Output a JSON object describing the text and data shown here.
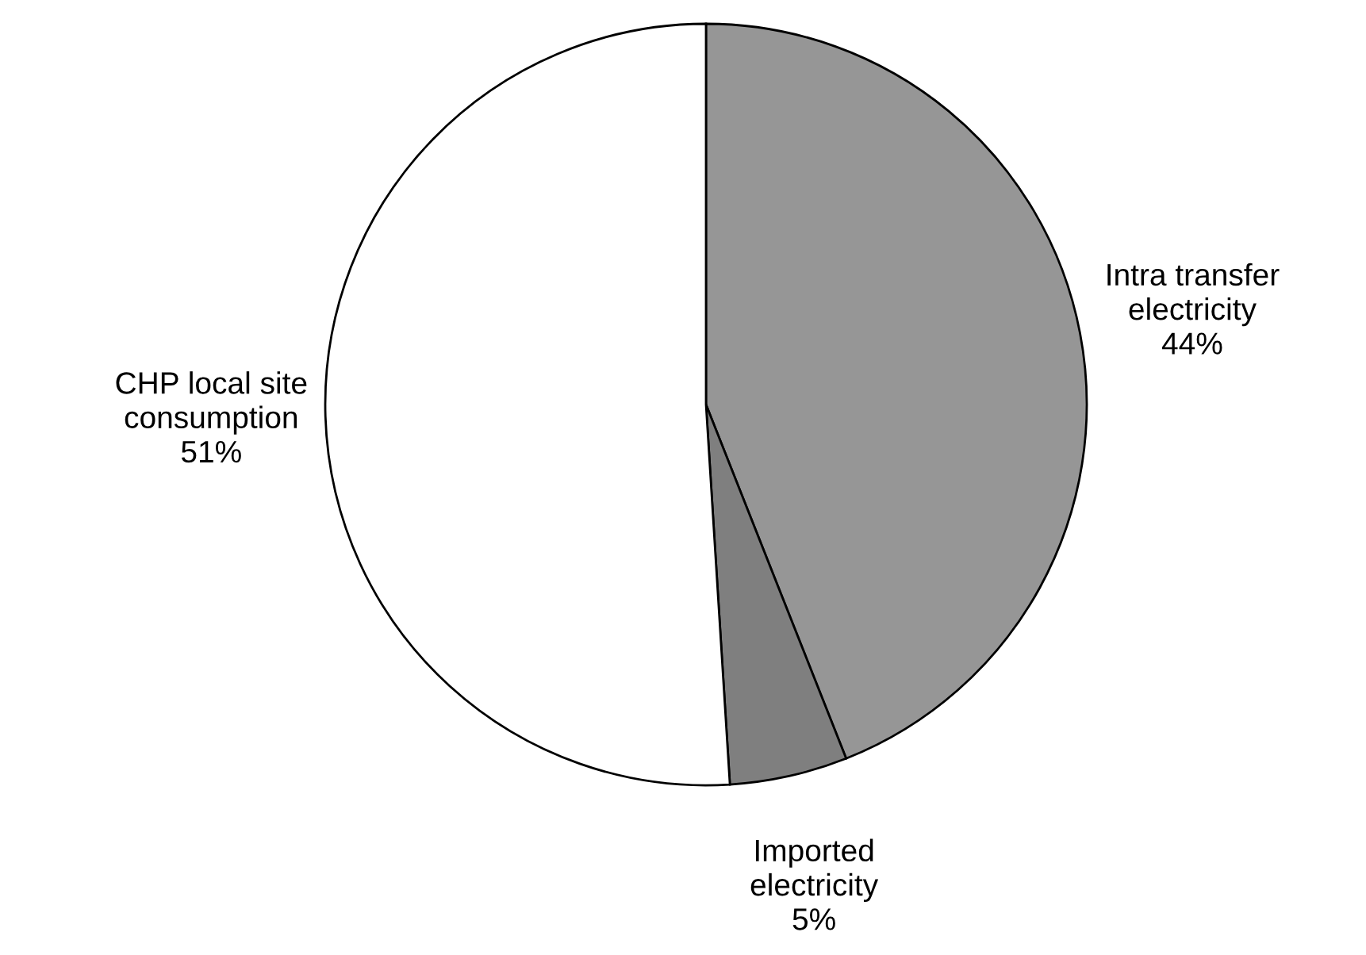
{
  "chart_data": {
    "type": "pie",
    "categories": [
      "Intra transfer electricity",
      "Imported electricity",
      "CHP local site consumption"
    ],
    "values": [
      44,
      5,
      51
    ],
    "colors": [
      "#969696",
      "#7f7f7f",
      "#ffffff"
    ],
    "value_labels": [
      "44%",
      "5%",
      "51%"
    ]
  }
}
